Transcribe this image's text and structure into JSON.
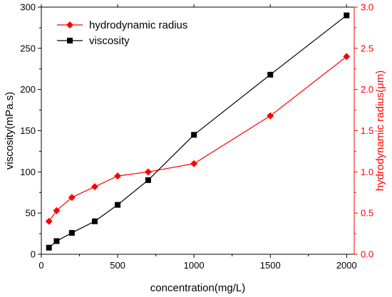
{
  "chart_data": {
    "type": "line",
    "title": "",
    "xlabel": "concentration(mg/L)",
    "ylabel": "viscosity(mPa.s)",
    "y2label": "hydrodynamic radius(μm)",
    "xlim": [
      0,
      2050
    ],
    "ylim": [
      0,
      300
    ],
    "y2lim": [
      0,
      3.0
    ],
    "x_ticks": [
      0,
      500,
      1000,
      1500,
      2000
    ],
    "y_ticks": [
      0,
      50,
      100,
      150,
      200,
      250,
      300
    ],
    "y2_ticks": [
      "0.0",
      "0.5",
      "1.0",
      "1.5",
      "2.0",
      "2.5",
      "3.0"
    ],
    "grid": false,
    "legend_position": "top-left",
    "series": [
      {
        "name": "hydrodynamic radius",
        "axis": "right",
        "color": "#ff0000",
        "marker": "diamond",
        "x": [
          50,
          100,
          200,
          350,
          500,
          700,
          1000,
          1500,
          2000
        ],
        "y": [
          0.4,
          0.53,
          0.69,
          0.82,
          0.95,
          1.0,
          1.1,
          1.68,
          2.4
        ]
      },
      {
        "name": "viscosity",
        "axis": "left",
        "color": "#000000",
        "marker": "square",
        "x": [
          50,
          100,
          200,
          350,
          500,
          700,
          1000,
          1500,
          2000
        ],
        "y": [
          8,
          16,
          26,
          40,
          60,
          90,
          145,
          218,
          290
        ]
      }
    ]
  }
}
